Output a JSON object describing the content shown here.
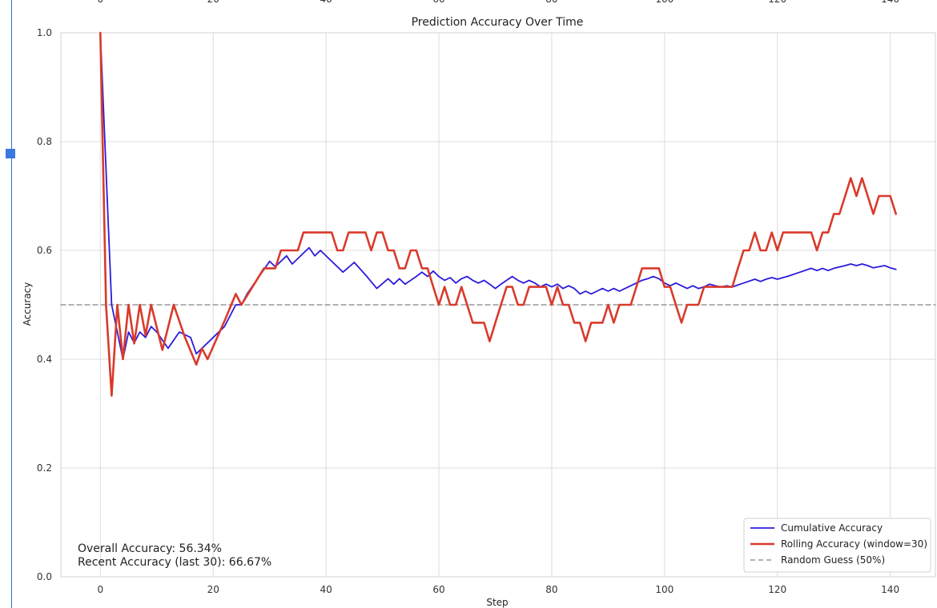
{
  "chart_data": {
    "type": "line",
    "title": "Prediction Accuracy Over Time",
    "xlabel": "Step",
    "ylabel": "Accuracy",
    "xlim": [
      -7,
      148
    ],
    "ylim": [
      0.0,
      1.0
    ],
    "x_ticks": [
      0,
      20,
      40,
      60,
      80,
      100,
      120,
      140
    ],
    "y_ticks": [
      0.0,
      0.2,
      0.4,
      0.6,
      0.8,
      1.0
    ],
    "x_tick_labels": [
      "0",
      "20",
      "40",
      "60",
      "80",
      "100",
      "120",
      "140"
    ],
    "y_tick_labels": [
      "0.0",
      "0.2",
      "0.4",
      "0.6",
      "0.8",
      "1.0"
    ],
    "grid": true,
    "legend_position": "bottom-right",
    "series": [
      {
        "name": "Cumulative Accuracy",
        "color": "#2b1bdb",
        "style": "solid",
        "x": [
          0,
          2,
          3,
          4,
          5,
          6,
          7,
          8,
          9,
          10,
          12,
          14,
          16,
          17,
          18,
          20,
          22,
          24,
          25,
          26,
          28,
          30,
          31,
          33,
          34,
          36,
          37,
          38,
          39,
          41,
          43,
          45,
          47,
          49,
          51,
          52,
          53,
          54,
          56,
          57,
          58,
          59,
          60,
          61,
          62,
          63,
          64,
          65,
          66,
          67,
          68,
          69,
          70,
          71,
          72,
          73,
          74,
          75,
          76,
          77,
          78,
          79,
          80,
          81,
          82,
          83,
          84,
          85,
          86,
          87,
          88,
          89,
          90,
          91,
          92,
          93,
          94,
          95,
          96,
          97,
          98,
          99,
          100,
          101,
          102,
          103,
          104,
          105,
          106,
          107,
          108,
          109,
          110,
          111,
          112,
          114,
          116,
          117,
          118,
          119,
          120,
          122,
          124,
          126,
          127,
          128,
          129,
          130,
          132,
          133,
          134,
          135,
          136,
          137,
          138,
          139,
          140,
          141
        ],
        "y": [
          1.0,
          0.5,
          0.45,
          0.4,
          0.45,
          0.43,
          0.45,
          0.44,
          0.46,
          0.45,
          0.42,
          0.45,
          0.44,
          0.41,
          0.42,
          0.44,
          0.46,
          0.5,
          0.5,
          0.52,
          0.55,
          0.58,
          0.57,
          0.59,
          0.575,
          0.595,
          0.605,
          0.59,
          0.6,
          0.58,
          0.56,
          0.578,
          0.555,
          0.53,
          0.548,
          0.538,
          0.548,
          0.538,
          0.552,
          0.56,
          0.552,
          0.562,
          0.552,
          0.545,
          0.55,
          0.54,
          0.548,
          0.552,
          0.545,
          0.54,
          0.545,
          0.538,
          0.53,
          0.538,
          0.545,
          0.552,
          0.545,
          0.54,
          0.545,
          0.54,
          0.533,
          0.538,
          0.533,
          0.538,
          0.53,
          0.535,
          0.53,
          0.52,
          0.525,
          0.52,
          0.525,
          0.53,
          0.525,
          0.53,
          0.525,
          0.53,
          0.535,
          0.54,
          0.545,
          0.548,
          0.552,
          0.548,
          0.54,
          0.535,
          0.54,
          0.535,
          0.53,
          0.535,
          0.53,
          0.533,
          0.538,
          0.535,
          0.533,
          0.535,
          0.533,
          0.54,
          0.547,
          0.543,
          0.547,
          0.55,
          0.547,
          0.553,
          0.56,
          0.567,
          0.563,
          0.567,
          0.563,
          0.567,
          0.572,
          0.575,
          0.572,
          0.575,
          0.572,
          0.568,
          0.57,
          0.572,
          0.568,
          0.565
        ]
      },
      {
        "name": "Rolling Accuracy (window=30)",
        "color": "#d93a2b",
        "style": "solid",
        "x": [
          0,
          1,
          2,
          3,
          4,
          5,
          6,
          7,
          8,
          9,
          11,
          13,
          15,
          17,
          18,
          19,
          22,
          24,
          25,
          29,
          31,
          32,
          35,
          36,
          38,
          41,
          42,
          43,
          44,
          47,
          48,
          49,
          50,
          51,
          52,
          53,
          54,
          55,
          56,
          57,
          58,
          59,
          60,
          61,
          62,
          63,
          64,
          65,
          66,
          67,
          68,
          69,
          70,
          71,
          72,
          73,
          74,
          75,
          76,
          77,
          78,
          79,
          80,
          81,
          82,
          83,
          84,
          85,
          86,
          87,
          88,
          89,
          90,
          91,
          92,
          93,
          94,
          95,
          96,
          97,
          98,
          99,
          100,
          101,
          102,
          103,
          104,
          105,
          106,
          107,
          108,
          109,
          110,
          111,
          112,
          113,
          114,
          115,
          116,
          117,
          118,
          119,
          120,
          121,
          122,
          123,
          124,
          125,
          126,
          127,
          128,
          129,
          130,
          131,
          132,
          133,
          134,
          135,
          136,
          137,
          138,
          139,
          140,
          141
        ],
        "y": [
          1.0,
          0.5,
          0.333,
          0.5,
          0.4,
          0.5,
          0.429,
          0.5,
          0.444,
          0.5,
          0.417,
          0.5,
          0.44,
          0.39,
          0.42,
          0.4,
          0.47,
          0.52,
          0.5,
          0.567,
          0.567,
          0.6,
          0.6,
          0.633,
          0.633,
          0.633,
          0.6,
          0.6,
          0.633,
          0.633,
          0.6,
          0.633,
          0.633,
          0.6,
          0.6,
          0.567,
          0.567,
          0.6,
          0.6,
          0.567,
          0.567,
          0.533,
          0.5,
          0.533,
          0.5,
          0.5,
          0.533,
          0.5,
          0.467,
          0.467,
          0.467,
          0.433,
          0.467,
          0.5,
          0.533,
          0.533,
          0.5,
          0.5,
          0.533,
          0.533,
          0.533,
          0.533,
          0.5,
          0.533,
          0.5,
          0.5,
          0.467,
          0.467,
          0.433,
          0.467,
          0.467,
          0.467,
          0.5,
          0.467,
          0.5,
          0.5,
          0.5,
          0.533,
          0.567,
          0.567,
          0.567,
          0.567,
          0.533,
          0.533,
          0.5,
          0.467,
          0.5,
          0.5,
          0.5,
          0.533,
          0.533,
          0.533,
          0.533,
          0.533,
          0.533,
          0.567,
          0.6,
          0.6,
          0.633,
          0.6,
          0.6,
          0.633,
          0.6,
          0.633,
          0.633,
          0.633,
          0.633,
          0.633,
          0.633,
          0.6,
          0.633,
          0.633,
          0.667,
          0.667,
          0.7,
          0.733,
          0.7,
          0.733,
          0.7,
          0.667,
          0.7,
          0.7,
          0.7,
          0.667
        ]
      },
      {
        "name": "Random Guess (50%)",
        "color": "#999999",
        "style": "dashed",
        "x": [
          -7,
          148
        ],
        "y": [
          0.5,
          0.5
        ]
      }
    ],
    "annotations": [
      "Overall Accuracy: 56.34%",
      "Recent Accuracy (last 30): 66.67%"
    ]
  }
}
